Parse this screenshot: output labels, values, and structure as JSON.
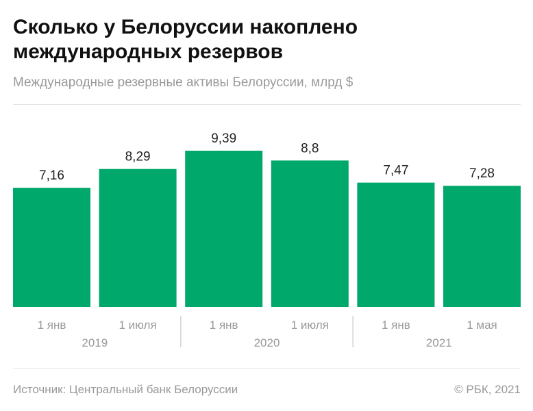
{
  "title": "Сколько у Белоруссии накоплено международных резервов",
  "subtitle": "Международные резервные активы Белоруссии, млрд $",
  "source": "Источник: Центральный банк Белоруссии",
  "copyright": "© РБК, 2021",
  "chart_data": {
    "type": "bar",
    "categories": [
      "1 янв",
      "1 июля",
      "1 янв",
      "1 июля",
      "1 янв",
      "1 мая"
    ],
    "groups": [
      {
        "label": "2019",
        "count": 2
      },
      {
        "label": "2020",
        "count": 2
      },
      {
        "label": "2021",
        "count": 2
      }
    ],
    "values": [
      7.16,
      8.29,
      9.39,
      8.8,
      7.47,
      7.28
    ],
    "value_labels": [
      "7,16",
      "8,29",
      "9,39",
      "8,8",
      "7,47",
      "7,28"
    ],
    "ylim": [
      0,
      9.39
    ],
    "color": "#00a86b",
    "grid": false
  }
}
